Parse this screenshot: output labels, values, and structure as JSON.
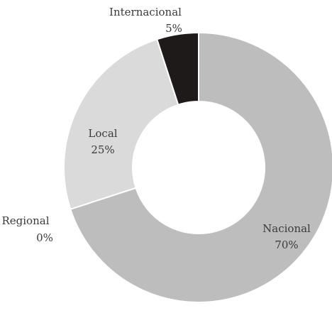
{
  "chart_data": {
    "type": "pie",
    "donut": true,
    "title": "",
    "slices": [
      {
        "label": "Nacional",
        "value": 70,
        "value_label": "70%",
        "color": "#bdbdbd"
      },
      {
        "label": "Regional",
        "value": 0,
        "value_label": "0%",
        "color": "#bdbdbd"
      },
      {
        "label": "Local",
        "value": 25,
        "value_label": "25%",
        "color": "#dadada"
      },
      {
        "label": "Internacional",
        "value": 5,
        "value_label": "5%",
        "color": "#1e1a1a"
      }
    ],
    "start_angle_deg": 0,
    "direction": "clockwise",
    "legend": "none",
    "labels": "outside-or-on-slice"
  }
}
